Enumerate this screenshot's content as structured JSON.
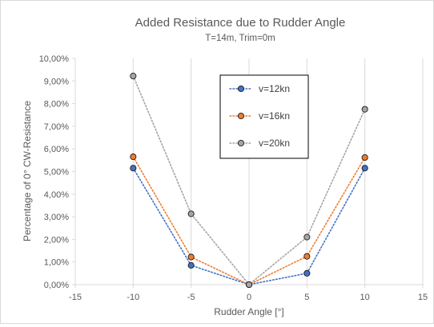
{
  "chart_data": {
    "type": "scatter",
    "title": "Added Resistance due to Rudder Angle",
    "subtitle": "T=14m, Trim=0m",
    "xlabel": "Rudder Angle [°]",
    "ylabel": "Percentage of 0° CW-Resistance",
    "xlim": [
      -15,
      15
    ],
    "ylim": [
      0,
      10
    ],
    "x_ticks": [
      -15,
      -10,
      -5,
      0,
      5,
      10,
      15
    ],
    "x_tick_labels": [
      "-15",
      "-10",
      "-5",
      "0",
      "5",
      "10",
      "15"
    ],
    "y_ticks": [
      0,
      1,
      2,
      3,
      4,
      5,
      6,
      7,
      8,
      9,
      10
    ],
    "y_tick_labels": [
      "0,00%",
      "1,00%",
      "2,00%",
      "3,00%",
      "4,00%",
      "5,00%",
      "6,00%",
      "7,00%",
      "8,00%",
      "9,00%",
      "10,00%"
    ],
    "grid": "vertical",
    "legend_position": "top-center",
    "line_style": "dotted",
    "series": [
      {
        "name": "v=12kn",
        "color": "#4472C4",
        "x": [
          -10,
          -5,
          0,
          5,
          10
        ],
        "y": [
          5.15,
          0.85,
          0.0,
          0.5,
          5.15
        ]
      },
      {
        "name": "v=16kn",
        "color": "#ED7D31",
        "x": [
          -10,
          -5,
          0,
          5,
          10
        ],
        "y": [
          5.65,
          1.22,
          0.0,
          1.25,
          5.62
        ]
      },
      {
        "name": "v=20kn",
        "color": "#A5A5A5",
        "x": [
          -10,
          -5,
          0,
          5,
          10
        ],
        "y": [
          9.22,
          3.13,
          0.0,
          2.1,
          7.75
        ]
      }
    ]
  }
}
